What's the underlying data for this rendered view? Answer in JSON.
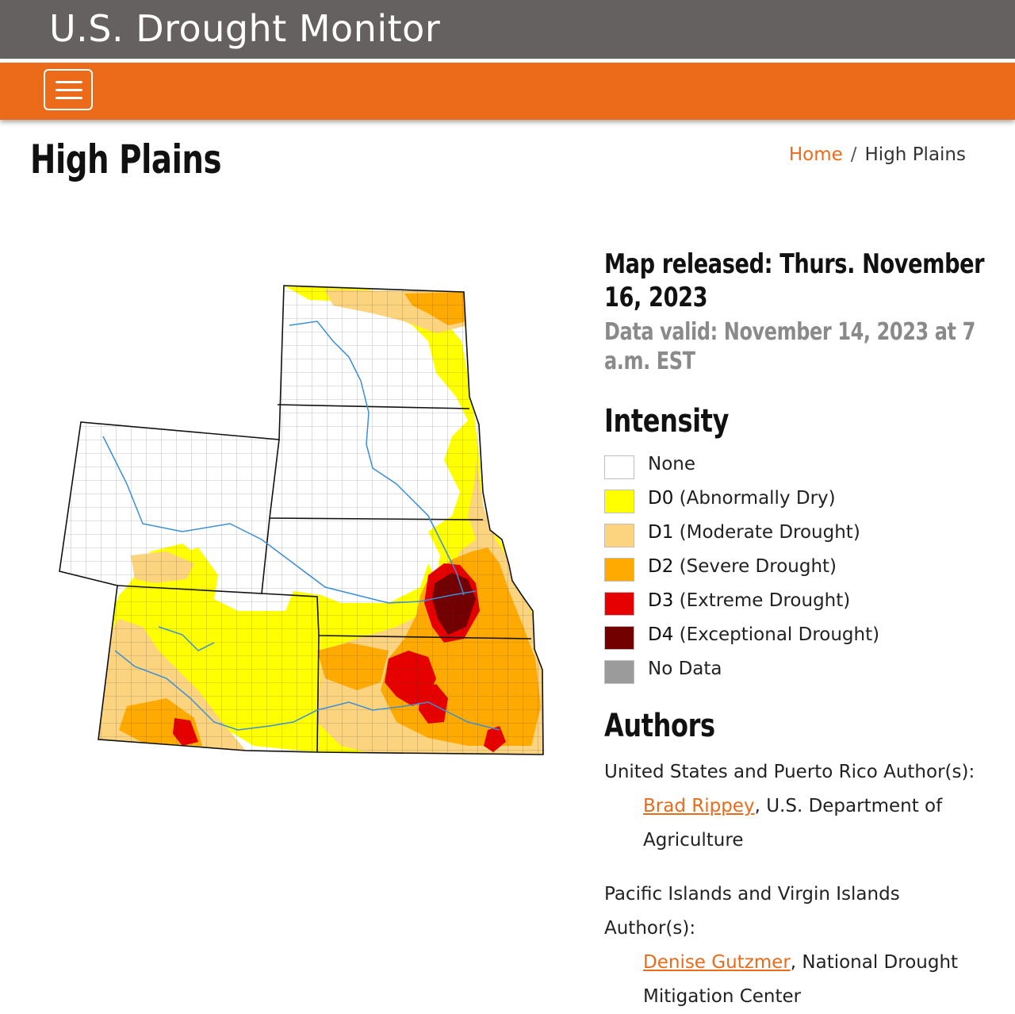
{
  "header": {
    "site_title": "U.S. Drought Monitor"
  },
  "page": {
    "title": "High Plains"
  },
  "breadcrumb": {
    "home": "Home",
    "separator": "/",
    "current": "High Plains"
  },
  "map_info": {
    "released": "Map released: Thurs. November 16, 2023",
    "valid": "Data valid: November 14, 2023 at 7 a.m. EST"
  },
  "intensity": {
    "title": "Intensity",
    "items": [
      {
        "code": "",
        "label": "None",
        "color": "#ffffff"
      },
      {
        "code": "D0",
        "label": "(Abnormally Dry)",
        "color": "#ffff00"
      },
      {
        "code": "D1",
        "label": "(Moderate Drought)",
        "color": "#fcd37f"
      },
      {
        "code": "D2",
        "label": "(Severe Drought)",
        "color": "#ffaa00"
      },
      {
        "code": "D3",
        "label": "(Extreme Drought)",
        "color": "#e60000"
      },
      {
        "code": "D4",
        "label": "(Exceptional Drought)",
        "color": "#730000"
      },
      {
        "code": "",
        "label": "No Data",
        "color": "#9b9b9b"
      }
    ]
  },
  "authors": {
    "title": "Authors",
    "groups": [
      {
        "heading": "United States and Puerto Rico Author(s):",
        "name": "Brad Rippey",
        "affiliation": ", U.S. Department of Agriculture"
      },
      {
        "heading": "Pacific Islands and Virgin Islands Author(s):",
        "name": "Denise Gutzmer",
        "affiliation": ", National Drought Mitigation Center"
      }
    ]
  },
  "colors": {
    "accent": "#ec6b1b",
    "topbar": "#646160",
    "river": "#3a8fd6"
  }
}
